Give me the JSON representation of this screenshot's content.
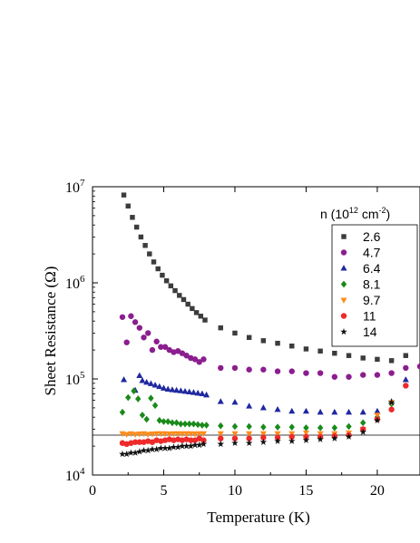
{
  "chart_data": {
    "type": "scatter",
    "xlabel": "Temperature (K)",
    "ylabel": "Sheet Resistance (Ω)",
    "xlim": [
      0,
      23
    ],
    "ylim": [
      10000,
      10000000
    ],
    "yscale": "log",
    "x_ticks": [
      0,
      5,
      10,
      15,
      20
    ],
    "x_tick_labels": [
      "0",
      "5",
      "10",
      "15",
      "20"
    ],
    "y_ticks": [
      10000,
      100000,
      1000000,
      10000000
    ],
    "y_tick_labels": [
      {
        "base": "10",
        "exp": "4"
      },
      {
        "base": "10",
        "exp": "5"
      },
      {
        "base": "10",
        "exp": "6"
      },
      {
        "base": "10",
        "exp": "7"
      }
    ],
    "reference_line": {
      "y": 26000,
      "color": "#000000"
    },
    "legend": {
      "title_prefix": "n (10",
      "title_exp1": "12",
      "title_mid": " cm",
      "title_exp2": "-2",
      "title_suffix": ")",
      "placement": "top-right"
    },
    "series": [
      {
        "name": "2.6",
        "color": "#3c3c3c",
        "marker": "square",
        "x": [
          2.2,
          2.5,
          2.8,
          3.1,
          3.4,
          3.7,
          4.0,
          4.3,
          4.6,
          4.9,
          5.2,
          5.5,
          5.8,
          6.1,
          6.4,
          6.7,
          7.0,
          7.3,
          7.6,
          7.9,
          9.0,
          10.0,
          11.0,
          12.0,
          13.0,
          14.0,
          15.0,
          16.0,
          17.0,
          18.0,
          19.0,
          20.0,
          21.0,
          22.0
        ],
        "y": [
          8200000,
          6300000,
          4800000,
          3800000,
          3000000,
          2450000,
          2000000,
          1650000,
          1400000,
          1200000,
          1050000,
          930000,
          830000,
          740000,
          670000,
          600000,
          540000,
          490000,
          450000,
          410000,
          340000,
          300000,
          270000,
          250000,
          235000,
          220000,
          205000,
          195000,
          185000,
          175000,
          165000,
          160000,
          155000,
          175000
        ]
      },
      {
        "name": "4.7",
        "color": "#8b1e8f",
        "marker": "circle",
        "x": [
          2.1,
          2.4,
          2.7,
          3.0,
          3.3,
          3.6,
          3.9,
          4.2,
          4.5,
          4.8,
          5.1,
          5.4,
          5.7,
          6.0,
          6.3,
          6.6,
          6.9,
          7.2,
          7.5,
          7.8,
          9.0,
          10.0,
          11.0,
          12.0,
          13.0,
          14.0,
          15.0,
          16.0,
          17.0,
          18.0,
          19.0,
          20.0,
          21.0,
          22.0,
          23.0
        ],
        "y": [
          440000,
          240000,
          450000,
          390000,
          340000,
          270000,
          300000,
          200000,
          245000,
          215000,
          215000,
          200000,
          190000,
          195000,
          185000,
          175000,
          165000,
          160000,
          150000,
          160000,
          130000,
          130000,
          125000,
          125000,
          120000,
          120000,
          115000,
          115000,
          105000,
          105000,
          110000,
          110000,
          115000,
          130000,
          135000
        ]
      },
      {
        "name": "6.4",
        "color": "#1f28a0",
        "marker": "triangle",
        "x": [
          2.2,
          3.0,
          3.3,
          3.5,
          3.8,
          4.1,
          4.4,
          4.7,
          5.0,
          5.3,
          5.6,
          5.9,
          6.2,
          6.5,
          6.8,
          7.1,
          7.4,
          7.7,
          8.0,
          9.0,
          10.0,
          11.0,
          12.0,
          13.0,
          14.0,
          15.0,
          16.0,
          17.0,
          18.0,
          19.0,
          20.0,
          21.0,
          22.0
        ],
        "y": [
          98000,
          76000,
          108000,
          96000,
          92000,
          89000,
          86000,
          83000,
          80000,
          78000,
          77000,
          76000,
          75000,
          74000,
          73000,
          72000,
          71000,
          70000,
          68000,
          58000,
          57000,
          52000,
          50000,
          48000,
          46000,
          46000,
          45000,
          45000,
          45000,
          45000,
          46000,
          58000,
          98000
        ]
      },
      {
        "name": "8.1",
        "color": "#1a8a1a",
        "marker": "diamond",
        "x": [
          2.1,
          2.5,
          2.9,
          3.2,
          3.5,
          3.8,
          4.1,
          4.4,
          4.7,
          5.0,
          5.3,
          5.6,
          5.9,
          6.2,
          6.5,
          6.8,
          7.1,
          7.4,
          7.7,
          8.0,
          9.0,
          10.0,
          11.0,
          12.0,
          13.0,
          14.0,
          15.0,
          16.0,
          17.0,
          18.0,
          19.0,
          20.0,
          21.0
        ],
        "y": [
          45000,
          64000,
          75000,
          62000,
          42000,
          38000,
          63000,
          53000,
          37000,
          36000,
          36000,
          35000,
          35000,
          34000,
          34000,
          34000,
          34000,
          33500,
          33000,
          33000,
          32500,
          32000,
          32000,
          31500,
          31500,
          31500,
          31000,
          31000,
          31000,
          32000,
          35000,
          40000,
          55000
        ]
      },
      {
        "name": "9.7",
        "color": "#ff8c1a",
        "marker": "triangle-down",
        "x": [
          2.1,
          2.4,
          2.7,
          3.0,
          3.3,
          3.6,
          3.9,
          4.2,
          4.5,
          4.8,
          5.1,
          5.4,
          5.7,
          6.0,
          6.3,
          6.6,
          6.9,
          7.2,
          7.5,
          7.8,
          9.0,
          10.0,
          11.0,
          12.0,
          13.0,
          14.0,
          15.0,
          16.0,
          17.0,
          18.0,
          19.0,
          20.0,
          21.0
        ],
        "y": [
          27000,
          26500,
          27000,
          26500,
          26800,
          27000,
          26500,
          26800,
          27000,
          27000,
          27000,
          26800,
          27000,
          27000,
          27000,
          27000,
          27000,
          26800,
          27000,
          27000,
          27000,
          27000,
          27000,
          27000,
          27000,
          27000,
          27500,
          27000,
          27000,
          27500,
          30000,
          42000,
          57000
        ]
      },
      {
        "name": "11",
        "color": "#ee2a2a",
        "marker": "circle",
        "x": [
          2.1,
          2.4,
          2.7,
          3.0,
          3.3,
          3.6,
          3.9,
          4.2,
          4.5,
          4.8,
          5.1,
          5.4,
          5.7,
          6.0,
          6.3,
          6.6,
          6.9,
          7.2,
          7.5,
          7.8,
          9.0,
          10.0,
          11.0,
          12.0,
          13.0,
          14.0,
          15.0,
          16.0,
          17.0,
          18.0,
          19.0,
          20.0,
          21.0,
          22.0
        ],
        "y": [
          21500,
          21000,
          21500,
          22000,
          22000,
          22000,
          22500,
          22000,
          23000,
          22500,
          23000,
          23500,
          23000,
          23500,
          23000,
          23500,
          23000,
          23000,
          24000,
          23000,
          24000,
          24000,
          24000,
          24500,
          24500,
          25000,
          25000,
          25000,
          25500,
          26000,
          30000,
          38000,
          48000,
          85000
        ]
      },
      {
        "name": "14",
        "color": "#111111",
        "marker": "star",
        "x": [
          2.1,
          2.4,
          2.7,
          3.0,
          3.3,
          3.6,
          3.9,
          4.2,
          4.5,
          4.8,
          5.1,
          5.4,
          5.7,
          6.0,
          6.3,
          6.6,
          6.9,
          7.2,
          7.5,
          7.8,
          9.0,
          10.0,
          11.0,
          12.0,
          13.0,
          14.0,
          15.0,
          16.0,
          17.0,
          18.0,
          19.0,
          20.0,
          21.0
        ],
        "y": [
          16500,
          16500,
          17000,
          17000,
          17500,
          18000,
          18000,
          18500,
          18500,
          19000,
          19000,
          19000,
          19500,
          19500,
          20000,
          20000,
          20000,
          20500,
          20500,
          21000,
          21000,
          21500,
          21500,
          22000,
          22500,
          22500,
          23000,
          23500,
          24000,
          25000,
          28000,
          37000,
          57000
        ]
      }
    ]
  }
}
